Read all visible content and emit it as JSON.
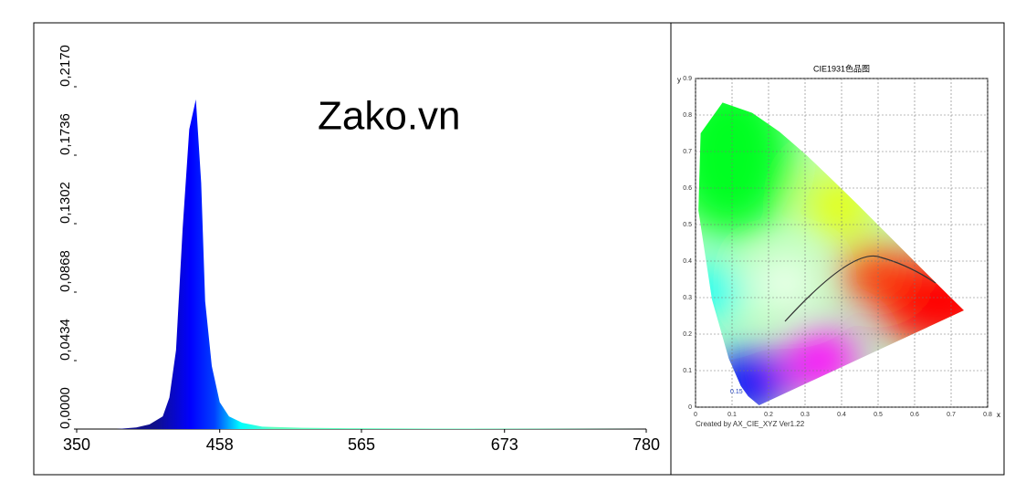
{
  "chart_data": [
    {
      "type": "area",
      "annotation": "Zako.vn",
      "x": [
        380,
        395,
        405,
        415,
        420,
        425,
        430,
        435,
        440,
        444,
        447,
        452,
        458,
        465,
        475,
        490,
        520,
        560,
        620,
        700,
        780
      ],
      "values": [
        0,
        0.001,
        0.003,
        0.008,
        0.02,
        0.05,
        0.127,
        0.19,
        0.209,
        0.156,
        0.081,
        0.04,
        0.017,
        0.008,
        0.004,
        0.0015,
        0.0008,
        0.0005,
        0.0003,
        0.0002,
        0
      ],
      "xlim": [
        350,
        780
      ],
      "xticks": [
        350,
        458,
        565,
        673,
        780
      ],
      "ylim": [
        0,
        0.217
      ],
      "yticks": [
        {
          "value": 0,
          "label": "0,0000"
        },
        {
          "value": 0.0434,
          "label": "0,0434"
        },
        {
          "value": 0.0868,
          "label": "0,0868"
        },
        {
          "value": 0.1302,
          "label": "0,1302"
        },
        {
          "value": 0.1736,
          "label": "0,1736"
        },
        {
          "value": 0.217,
          "label": "0,2170"
        }
      ]
    },
    {
      "type": "cie",
      "title": "CIE1931色品图",
      "x_label": "x",
      "y_label": "y",
      "footnote": "Created by AX_CIE_XYZ Ver1.22",
      "annotation": "0.15",
      "xlim": [
        0,
        0.8
      ],
      "xticks": [
        0,
        0.1,
        0.2,
        0.3,
        0.4,
        0.5,
        0.6,
        0.7,
        0.8
      ],
      "ylim": [
        0,
        0.9
      ],
      "yticks": [
        0,
        0.1,
        0.2,
        0.3,
        0.4,
        0.5,
        0.6,
        0.7,
        0.8,
        0.9
      ],
      "grid": true
    }
  ]
}
